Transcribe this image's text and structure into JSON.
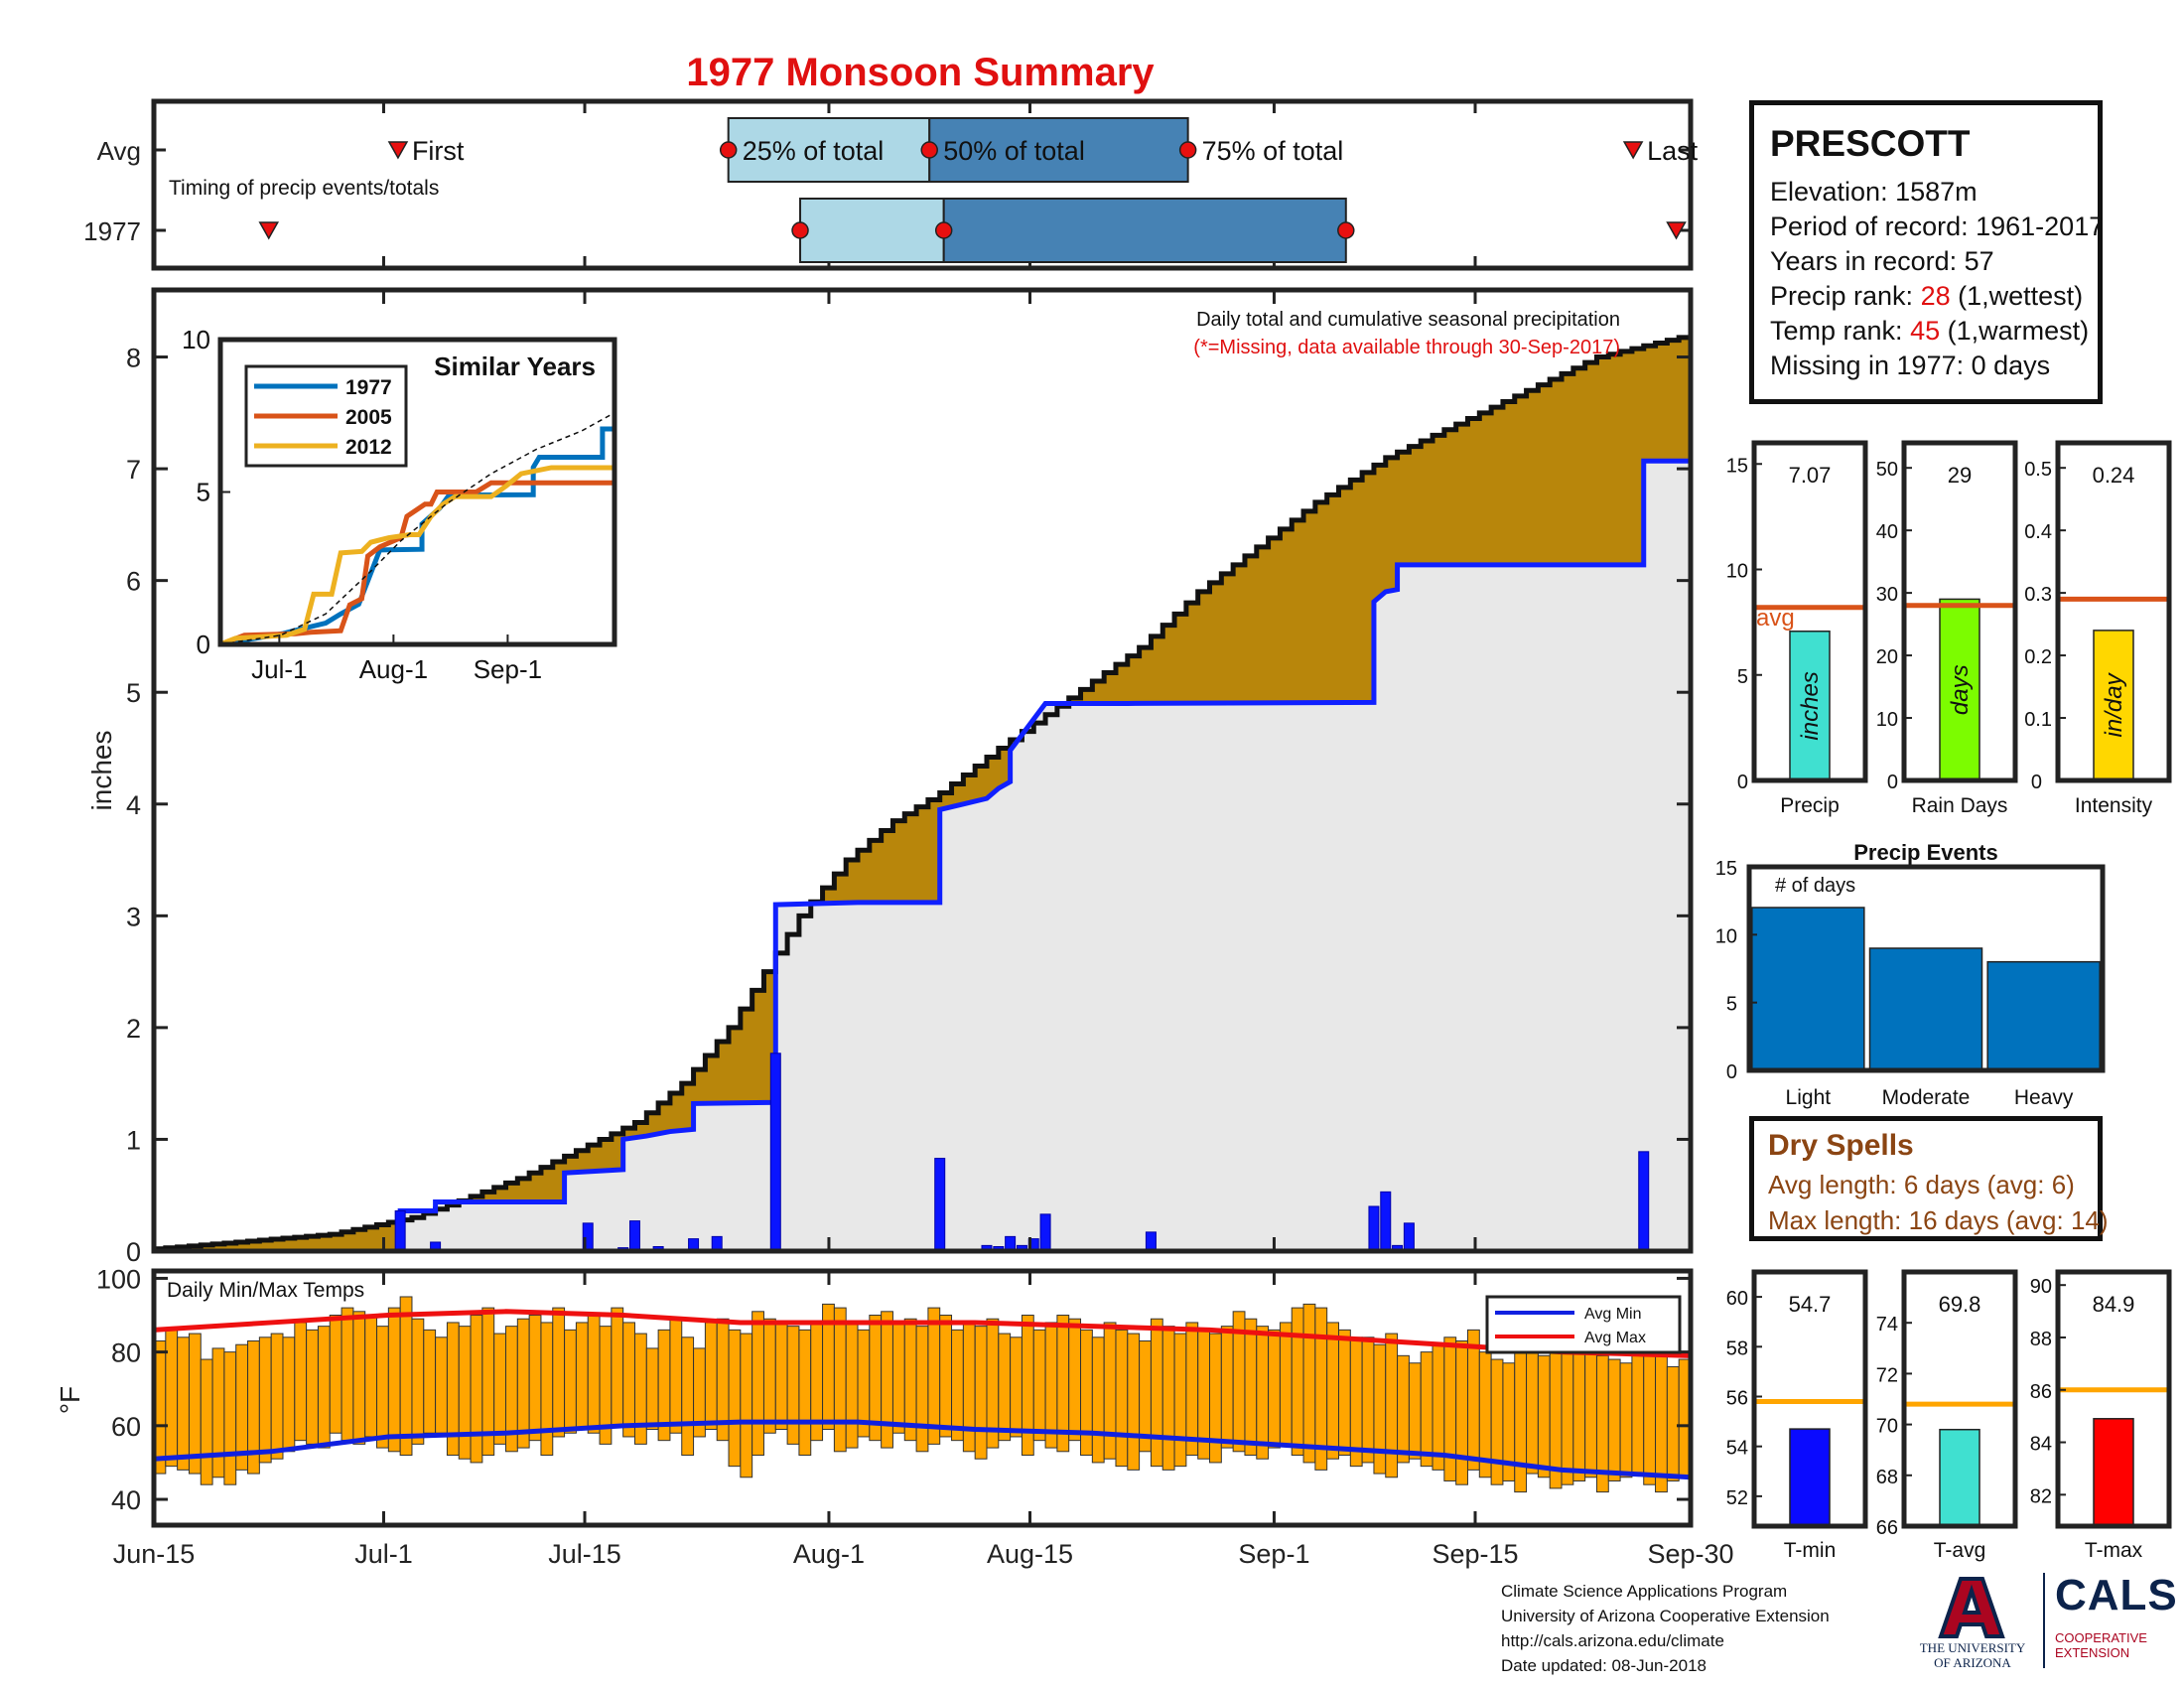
{
  "page": {
    "title": "1977 Monsoon Summary"
  },
  "station": {
    "name": "PRESCOTT",
    "elevation": "Elevation: 1587m",
    "period": "Period of record: 1961-2017",
    "years": "Years in record: 57",
    "precip_rank_label": "Precip rank: ",
    "precip_rank_value": "28",
    "precip_rank_note": " (1,wettest)",
    "temp_rank_label": "Temp rank: ",
    "temp_rank_value": "45",
    "temp_rank_note": " (1,warmest)",
    "missing": "Missing in 1977: 0 days"
  },
  "dry_spells": {
    "title": "Dry Spells",
    "avg_length": "Avg length: 6 days (avg: 6)",
    "max_length": "Max length: 16 days (avg: 14)"
  },
  "credits": {
    "line1": "Climate Science Applications Program",
    "line2": "University of Arizona Cooperative Extension",
    "line3": "http://cals.arizona.edu/climate",
    "line4": " Date updated: 08-Jun-2018"
  },
  "logo": {
    "ua_line1": "THE UNIVERSITY",
    "ua_line2": "OF ARIZONA",
    "cals": "CALS",
    "cals_line1": "COOPERATIVE",
    "cals_line2": "EXTENSION"
  },
  "colors": {
    "title": "#e01010",
    "cum_avg_fill": "#b8860b",
    "cum_1977_fill": "#e8e8e8",
    "daily_bar": "#0a14ff",
    "cum_line": "#1020ff",
    "light_blue": "#add8e6",
    "dark_blue": "#4682b4",
    "marker_red": "#e81010",
    "temp_bar": "#ffa500",
    "avg_min": "#1020e0",
    "avg_max": "#ee1010",
    "event_bar": "#0072bd",
    "avg_line_orange": "#d95319",
    "avg_line_temp": "#ffa500",
    "s1977": "#0072bd",
    "s2005": "#d95319",
    "s2012": "#edb120"
  },
  "chart_data": [
    {
      "type": "timeline",
      "name": "timing",
      "row_labels": [
        "Avg",
        "1977"
      ],
      "note": "Timing of precip events/totals",
      "labels": {
        "first": "First",
        "p25": "25% of total",
        "p50": "50% of total",
        "p75": "75% of total",
        "last": "Last"
      },
      "avg": {
        "first": "2017-07-02",
        "p25": "2017-07-25",
        "p50": "2017-08-08",
        "p75": "2017-08-26",
        "last": "2017-09-26"
      },
      "y1977": {
        "first": "2017-06-23",
        "p25": "2017-07-30",
        "p50": "2017-08-09",
        "p75": "2017-09-06",
        "last": "2017-09-29"
      }
    },
    {
      "type": "area",
      "name": "precipitation",
      "annotation_line1": "Daily total and cumulative seasonal precipitation",
      "annotation_line2": "(*=Missing, data available through 30-Sep-2017)",
      "ylabel": "inches",
      "ylim": [
        0,
        8.6
      ],
      "yticks": [
        0,
        1,
        2,
        3,
        4,
        5,
        6,
        7,
        8
      ],
      "xlim": [
        "2017-06-15",
        "2017-09-30"
      ],
      "xticks": [
        "Jun-15",
        "Jul-1",
        "Jul-15",
        "Aug-1",
        "Aug-15",
        "Sep-1",
        "Sep-15",
        "Sep-30"
      ],
      "avg_cumulative": [
        [
          0,
          0.02
        ],
        [
          7,
          0.08
        ],
        [
          15,
          0.15
        ],
        [
          22,
          0.3
        ],
        [
          26,
          0.45
        ],
        [
          31,
          0.65
        ],
        [
          36,
          0.9
        ],
        [
          41,
          1.15
        ],
        [
          45,
          1.5
        ],
        [
          49,
          2.0
        ],
        [
          52,
          2.5
        ],
        [
          55,
          3.0
        ],
        [
          59,
          3.5
        ],
        [
          63,
          3.85
        ],
        [
          67,
          4.1
        ],
        [
          72,
          4.5
        ],
        [
          78,
          4.95
        ],
        [
          84,
          5.4
        ],
        [
          89,
          5.9
        ],
        [
          94,
          6.3
        ],
        [
          99,
          6.7
        ],
        [
          105,
          7.1
        ],
        [
          112,
          7.45
        ],
        [
          118,
          7.75
        ],
        [
          123,
          8.0
        ],
        [
          127,
          8.1
        ],
        [
          131,
          8.2
        ]
      ],
      "cumulative_1977": [
        [
          0,
          0
        ],
        [
          21,
          0
        ],
        [
          21,
          0.36
        ],
        [
          24,
          0.36
        ],
        [
          24,
          0.44
        ],
        [
          35,
          0.44
        ],
        [
          35,
          0.7
        ],
        [
          40,
          0.73
        ],
        [
          40,
          1.0
        ],
        [
          42,
          1.03
        ],
        [
          44,
          1.07
        ],
        [
          46,
          1.09
        ],
        [
          46,
          1.32
        ],
        [
          53,
          1.33
        ],
        [
          53,
          3.1
        ],
        [
          60,
          3.12
        ],
        [
          67,
          3.12
        ],
        [
          67,
          3.95
        ],
        [
          69,
          4.0
        ],
        [
          71,
          4.05
        ],
        [
          72,
          4.14
        ],
        [
          73,
          4.2
        ],
        [
          73,
          4.48
        ],
        [
          76,
          4.9
        ],
        [
          83,
          4.9
        ],
        [
          104,
          4.91
        ],
        [
          104,
          5.81
        ],
        [
          105,
          5.9
        ],
        [
          106,
          5.92
        ],
        [
          106,
          6.14
        ],
        [
          127,
          6.14
        ],
        [
          127,
          7.07
        ],
        [
          131,
          7.07
        ]
      ],
      "daily": [
        [
          21,
          0.36
        ],
        [
          24,
          0.08
        ],
        [
          37,
          0.25
        ],
        [
          40,
          0.03
        ],
        [
          41,
          0.27
        ],
        [
          43,
          0.04
        ],
        [
          46,
          0.11
        ],
        [
          48,
          0.13
        ],
        [
          53,
          1.77
        ],
        [
          58,
          0.01
        ],
        [
          67,
          0.83
        ],
        [
          71,
          0.05
        ],
        [
          72,
          0.04
        ],
        [
          73,
          0.13
        ],
        [
          74,
          0.05
        ],
        [
          75,
          0.11
        ],
        [
          76,
          0.33
        ],
        [
          85,
          0.17
        ],
        [
          104,
          0.4
        ],
        [
          105,
          0.53
        ],
        [
          106,
          0.05
        ],
        [
          107,
          0.25
        ],
        [
          127,
          0.89
        ]
      ]
    },
    {
      "type": "line",
      "name": "similar_years",
      "title": "Similar Years",
      "ylim": [
        0,
        10
      ],
      "yticks": [
        0,
        5,
        10
      ],
      "xticks": [
        "Jul-1",
        "Aug-1",
        "Sep-1"
      ],
      "series": [
        {
          "name": "1977",
          "values": [
            [
              0,
              0
            ],
            [
              21,
              0.36
            ],
            [
              24,
              0.44
            ],
            [
              35,
              0.7
            ],
            [
              40,
              1.0
            ],
            [
              46,
              1.32
            ],
            [
              53,
              3.1
            ],
            [
              67,
              3.12
            ],
            [
              67,
              3.95
            ],
            [
              73,
              4.48
            ],
            [
              76,
              4.9
            ],
            [
              104,
              4.91
            ],
            [
              104,
              5.81
            ],
            [
              106,
              6.14
            ],
            [
              127,
              6.14
            ],
            [
              127,
              7.07
            ],
            [
              131,
              7.07
            ]
          ]
        },
        {
          "name": "2005",
          "values": [
            [
              0,
              0
            ],
            [
              8,
              0.3
            ],
            [
              25,
              0.35
            ],
            [
              30,
              0.4
            ],
            [
              40,
              0.45
            ],
            [
              43,
              1.3
            ],
            [
              47,
              1.5
            ],
            [
              49,
              2.9
            ],
            [
              53,
              3.2
            ],
            [
              60,
              3.5
            ],
            [
              62,
              4.2
            ],
            [
              68,
              4.6
            ],
            [
              70,
              4.6
            ],
            [
              72,
              5.0
            ],
            [
              85,
              5.0
            ],
            [
              90,
              5.3
            ],
            [
              102,
              5.3
            ],
            [
              131,
              5.3
            ]
          ]
        },
        {
          "name": "2012",
          "values": [
            [
              0,
              0
            ],
            [
              5,
              0.2
            ],
            [
              22,
              0.3
            ],
            [
              28,
              0.5
            ],
            [
              31,
              1.65
            ],
            [
              37,
              1.65
            ],
            [
              40,
              3.0
            ],
            [
              47,
              3.05
            ],
            [
              50,
              3.35
            ],
            [
              56,
              3.5
            ],
            [
              63,
              3.6
            ],
            [
              66,
              3.6
            ],
            [
              70,
              4.2
            ],
            [
              74,
              4.6
            ],
            [
              78,
              4.85
            ],
            [
              90,
              4.85
            ],
            [
              95,
              5.2
            ],
            [
              100,
              5.6
            ],
            [
              110,
              5.8
            ],
            [
              131,
              5.8
            ]
          ]
        },
        {
          "name": "",
          "values": [
            [
              0,
              0
            ],
            [
              20,
              0.3
            ],
            [
              35,
              1.0
            ],
            [
              50,
              2.4
            ],
            [
              60,
              3.4
            ],
            [
              75,
              4.6
            ],
            [
              90,
              5.6
            ],
            [
              105,
              6.4
            ],
            [
              120,
              7.0
            ],
            [
              131,
              7.6
            ]
          ]
        }
      ]
    },
    {
      "type": "bar",
      "name": "temperatures",
      "title": "Daily Min/Max Temps",
      "ylabel": "°F",
      "ylim": [
        33,
        102
      ],
      "yticks": [
        40,
        60,
        80,
        100
      ],
      "legend": [
        "Avg Min",
        "Avg Max"
      ],
      "tmax": [
        83,
        86,
        84,
        85,
        78,
        81,
        80,
        82,
        83,
        84,
        85,
        84,
        88,
        86,
        87,
        90,
        92,
        91,
        90,
        87,
        92,
        95,
        89,
        86,
        84,
        88,
        87,
        90,
        92,
        85,
        87,
        89,
        90,
        88,
        92,
        86,
        88,
        90,
        87,
        92,
        88,
        85,
        81,
        86,
        89,
        84,
        81,
        88,
        89,
        86,
        85,
        91,
        89,
        88,
        87,
        86,
        88,
        93,
        92,
        88,
        86,
        90,
        91,
        88,
        89,
        87,
        92,
        90,
        86,
        88,
        87,
        89,
        85,
        84,
        90,
        86,
        88,
        90,
        89,
        86,
        84,
        88,
        86,
        85,
        83,
        89,
        87,
        85,
        88,
        86,
        85,
        87,
        91,
        89,
        87,
        86,
        88,
        92,
        93,
        92,
        88,
        86,
        84,
        84,
        82,
        85,
        79,
        77,
        80,
        82,
        84,
        83,
        86,
        80,
        78,
        77,
        81,
        80,
        79,
        82,
        83,
        81,
        80,
        79,
        78,
        77,
        80,
        79,
        81,
        76,
        78
      ],
      "tmin": [
        47,
        49,
        48,
        47,
        44,
        46,
        44,
        48,
        47,
        50,
        51,
        53,
        56,
        55,
        54,
        58,
        56,
        55,
        57,
        54,
        53,
        52,
        55,
        58,
        58,
        52,
        51,
        50,
        52,
        55,
        53,
        54,
        56,
        52,
        57,
        58,
        59,
        58,
        55,
        60,
        57,
        55,
        59,
        56,
        58,
        52,
        57,
        59,
        56,
        49,
        46,
        52,
        58,
        59,
        55,
        52,
        56,
        59,
        53,
        54,
        57,
        56,
        54,
        58,
        56,
        53,
        55,
        57,
        56,
        53,
        51,
        54,
        56,
        57,
        52,
        56,
        54,
        53,
        56,
        52,
        50,
        51,
        49,
        48,
        53,
        49,
        48,
        49,
        52,
        51,
        50,
        54,
        53,
        52,
        51,
        54,
        55,
        52,
        50,
        48,
        51,
        52,
        49,
        50,
        47,
        46,
        50,
        51,
        49,
        48,
        45,
        44,
        48,
        46,
        44,
        45,
        42,
        47,
        46,
        43,
        44,
        45,
        46,
        42,
        45,
        46,
        47,
        44,
        42,
        45,
        46
      ],
      "avg_max": [
        [
          0,
          86
        ],
        [
          10,
          88
        ],
        [
          20,
          90
        ],
        [
          30,
          91
        ],
        [
          40,
          90
        ],
        [
          50,
          88
        ],
        [
          60,
          88
        ],
        [
          70,
          88
        ],
        [
          80,
          87
        ],
        [
          90,
          86
        ],
        [
          100,
          84
        ],
        [
          110,
          82
        ],
        [
          120,
          80
        ],
        [
          131,
          79
        ]
      ],
      "avg_min": [
        [
          0,
          51
        ],
        [
          10,
          53
        ],
        [
          20,
          57
        ],
        [
          30,
          58
        ],
        [
          40,
          60
        ],
        [
          50,
          61
        ],
        [
          60,
          61
        ],
        [
          70,
          59
        ],
        [
          80,
          58
        ],
        [
          90,
          56
        ],
        [
          100,
          54
        ],
        [
          110,
          52
        ],
        [
          120,
          48
        ],
        [
          131,
          46
        ]
      ]
    },
    {
      "type": "bar",
      "name": "precip_stats",
      "panels": [
        {
          "category": "Precip",
          "value": 7.07,
          "label": "7.07",
          "unit": "inches",
          "avg": 8.2,
          "avg_label": "avg",
          "ylim": [
            0,
            16
          ],
          "yticks": [
            0,
            5,
            10,
            15
          ],
          "color": "#40e0d0"
        },
        {
          "category": "Rain Days",
          "value": 29,
          "label": "29",
          "unit": "days",
          "avg": 28,
          "ylim": [
            0,
            54
          ],
          "yticks": [
            0,
            10,
            20,
            30,
            40,
            50
          ],
          "color": "#7cfc00"
        },
        {
          "category": "Intensity",
          "value": 0.24,
          "label": "0.24",
          "unit": "in/day",
          "avg": 0.29,
          "ylim": [
            0,
            0.54
          ],
          "yticks": [
            0.1,
            0.2,
            0.3,
            0.4,
            0.5
          ],
          "ytick_labels": [
            "0.1",
            "0.2",
            "0.3",
            "0.4",
            "0.5"
          ],
          "y0_label": "0",
          "color": "#ffd700"
        }
      ]
    },
    {
      "type": "bar",
      "name": "precip_events",
      "title": "Precip Events",
      "ylabel_inside": "# of days",
      "categories": [
        "Light",
        "Moderate",
        "Heavy"
      ],
      "values": [
        12,
        9,
        8
      ],
      "ylim": [
        0,
        15
      ],
      "yticks": [
        0,
        5,
        10,
        15
      ]
    },
    {
      "type": "bar",
      "name": "temp_stats",
      "panels": [
        {
          "category": "T-min",
          "value": 54.7,
          "label": "54.7",
          "avg": 55.8,
          "ylim": [
            50.8,
            61
          ],
          "yticks": [
            52,
            54,
            56,
            58,
            60
          ],
          "color": "#0a0aff"
        },
        {
          "category": "T-avg",
          "value": 69.8,
          "label": "69.8",
          "avg": 70.8,
          "ylim": [
            66,
            76
          ],
          "yticks": [
            66,
            68,
            70,
            72,
            74
          ],
          "color": "#40e0d0"
        },
        {
          "category": "T-max",
          "value": 84.9,
          "label": "84.9",
          "avg": 86,
          "ylim": [
            80.8,
            90.5
          ],
          "yticks": [
            82,
            84,
            86,
            88,
            90
          ],
          "color": "#ff0000"
        }
      ]
    }
  ]
}
